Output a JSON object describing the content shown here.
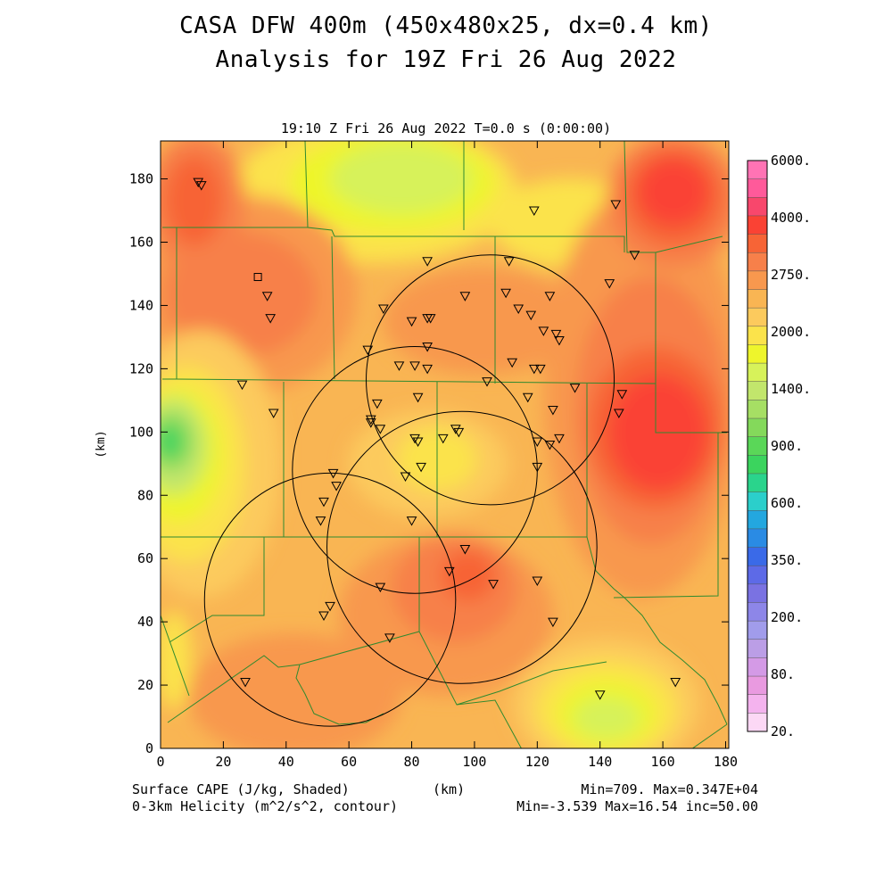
{
  "titles": {
    "line1": "CASA DFW 400m (450x480x25, dx=0.4 km)",
    "line2": "Analysis for 19Z Fri 26 Aug 2022",
    "subtitle": "19:10 Z Fri 26 Aug 2022   T=0.0 s (0:00:00)"
  },
  "axes": {
    "x_ticks": [
      "0",
      "20",
      "40",
      "60",
      "80",
      "100",
      "120",
      "140",
      "160",
      "180"
    ],
    "y_ticks": [
      "0",
      "20",
      "40",
      "60",
      "80",
      "100",
      "120",
      "140",
      "160",
      "180"
    ],
    "x_label": "(km)",
    "y_label": "(km)",
    "x_range": [
      0,
      181
    ],
    "y_range": [
      0,
      192
    ]
  },
  "colorbar": {
    "labels": [
      "6000.",
      "4000.",
      "2750.",
      "2000.",
      "1400.",
      "900.",
      "600.",
      "350.",
      "200.",
      "80.",
      "20."
    ],
    "colors": [
      "#ff73b4",
      "#ff5a9a",
      "#f8476c",
      "#fa4234",
      "#f76436",
      "#f7804a",
      "#f8984e",
      "#f9b553",
      "#fcca5d",
      "#fbe34b",
      "#eef52c",
      "#d7f25a",
      "#c2e66c",
      "#a6df64",
      "#84d95b",
      "#5ad758",
      "#3bd45e",
      "#2ad48c",
      "#2bcfcb",
      "#23a7df",
      "#2a8be4",
      "#3a6ae8",
      "#5d6ae7",
      "#7a72e2",
      "#8d86e8",
      "#a19ceb",
      "#bb9ee6",
      "#d49ae6",
      "#e99ae0",
      "#f4b3ee",
      "#fcd8f5"
    ]
  },
  "footer": {
    "left1": "Surface CAPE (J/kg, Shaded)",
    "left2": "0-3km Helicity (m^2/s^2, contour)",
    "center": "(km)",
    "right1": "Min=709. Max=0.347E+04",
    "right2": "Min=-3.539 Max=16.54 inc=50.00"
  },
  "map": {
    "field_colors": {
      "bg": "#f9b553",
      "light": "#fcca5d",
      "yellow": "#fbe34b",
      "lime": "#eef52c",
      "paleGreen": "#d7f25a",
      "green": "#c2e66c",
      "green2": "#84d95b",
      "green3": "#3bd45e",
      "orange": "#f8984e",
      "orange2": "#f7804a",
      "red": "#f76436",
      "red2": "#fa4234",
      "county": "#2f8a2f",
      "ring": "#000000"
    },
    "radar_rings": [
      {
        "cx": 105,
        "cy": 116.5,
        "r": 39.5
      },
      {
        "cx": 81,
        "cy": 88,
        "r": 39
      },
      {
        "cx": 96,
        "cy": 63.5,
        "r": 43
      },
      {
        "cx": 54,
        "cy": 47,
        "r": 40
      }
    ],
    "stations_triangles": [
      [
        12,
        179
      ],
      [
        13,
        178
      ],
      [
        119,
        170
      ],
      [
        145,
        172
      ],
      [
        151,
        156
      ],
      [
        85,
        154
      ],
      [
        111,
        154
      ],
      [
        34,
        143
      ],
      [
        35,
        136
      ],
      [
        71,
        139
      ],
      [
        80,
        135
      ],
      [
        85,
        136
      ],
      [
        86,
        136
      ],
      [
        97,
        143
      ],
      [
        110,
        144
      ],
      [
        114,
        139
      ],
      [
        118,
        137
      ],
      [
        124,
        143
      ],
      [
        122,
        132
      ],
      [
        126,
        131
      ],
      [
        127,
        129
      ],
      [
        66,
        126
      ],
      [
        85,
        127
      ],
      [
        76,
        121
      ],
      [
        81,
        121
      ],
      [
        85,
        120
      ],
      [
        112,
        122
      ],
      [
        119,
        120
      ],
      [
        121,
        120
      ],
      [
        104,
        116
      ],
      [
        143,
        147
      ],
      [
        26,
        115
      ],
      [
        36,
        106
      ],
      [
        69,
        109
      ],
      [
        67,
        104
      ],
      [
        67,
        103
      ],
      [
        70,
        101
      ],
      [
        82,
        111
      ],
      [
        117,
        111
      ],
      [
        125,
        107
      ],
      [
        132,
        114
      ],
      [
        147,
        112
      ],
      [
        146,
        106
      ],
      [
        81,
        98
      ],
      [
        82,
        97
      ],
      [
        90,
        98
      ],
      [
        94,
        101
      ],
      [
        95,
        100
      ],
      [
        120,
        97
      ],
      [
        124,
        96
      ],
      [
        127,
        98
      ],
      [
        120,
        89
      ],
      [
        55,
        87
      ],
      [
        56,
        83
      ],
      [
        78,
        86
      ],
      [
        83,
        89
      ],
      [
        52,
        78
      ],
      [
        51,
        72
      ],
      [
        80,
        72
      ],
      [
        97,
        63
      ],
      [
        92,
        56
      ],
      [
        106,
        52
      ],
      [
        120,
        53
      ],
      [
        70,
        51
      ],
      [
        54,
        45
      ],
      [
        52,
        42
      ],
      [
        73,
        35
      ],
      [
        125,
        40
      ],
      [
        27,
        21
      ],
      [
        140,
        17
      ],
      [
        164,
        21
      ]
    ],
    "stations_squares": [
      [
        31,
        149
      ]
    ]
  }
}
